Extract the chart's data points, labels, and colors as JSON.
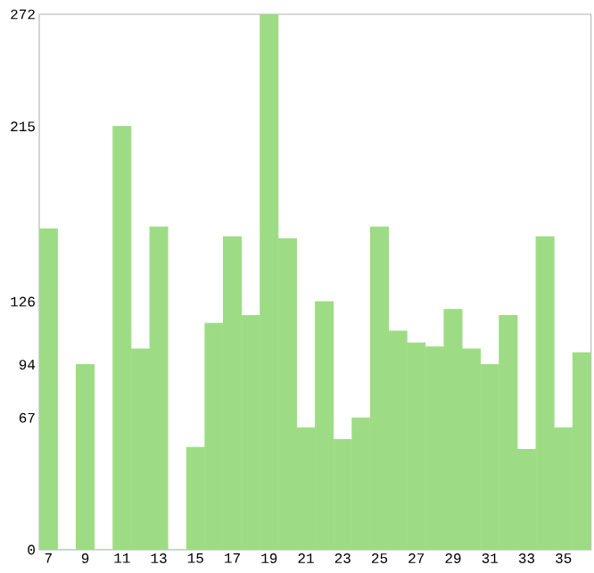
{
  "chart_data": {
    "type": "bar",
    "categories": [
      "7",
      null,
      "9",
      null,
      "11",
      null,
      "13",
      null,
      "15",
      null,
      "17",
      null,
      "19",
      null,
      "21",
      null,
      "23",
      null,
      "25",
      null,
      "27",
      null,
      "29",
      null,
      "31",
      null,
      "33",
      null,
      "35",
      null
    ],
    "values": [
      163,
      0,
      94,
      0,
      215,
      102,
      164,
      0,
      52,
      115,
      159,
      119,
      272,
      158,
      62,
      126,
      56,
      67,
      164,
      111,
      105,
      103,
      122,
      102,
      94,
      119,
      51,
      159,
      62,
      100
    ],
    "color": "#9ddc84",
    "ylim": [
      0,
      272
    ],
    "yticks": [
      0,
      67,
      94,
      126,
      215,
      272
    ],
    "grid": false
  }
}
